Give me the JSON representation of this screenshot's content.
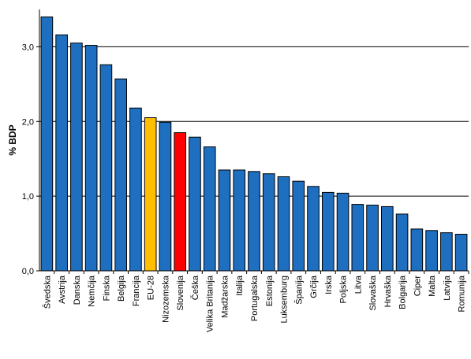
{
  "chart_data": {
    "type": "bar",
    "title": "",
    "xlabel": "",
    "ylabel": "% BDP",
    "ylim": [
      0,
      3.5
    ],
    "yticks": [
      "0,0",
      "1,0",
      "2,0",
      "3,0"
    ],
    "grid": true,
    "categories": [
      "Švedska",
      "Avstrija",
      "Danska",
      "Nemčija",
      "Finska",
      "Belgija",
      "Francija",
      "EU-28",
      "Nizozemska",
      "Slovenija",
      "Češka",
      "Velika Britanija",
      "Madžarska",
      "Italija",
      "Portugalska",
      "Estonija",
      "Luksemburg",
      "Španija",
      "Grčija",
      "Irska",
      "Poljska",
      "Litva",
      "Slovaška",
      "Hrvaška",
      "Bolgarija",
      "Ciper",
      "Malta",
      "Latvija",
      "Romunija"
    ],
    "values": [
      3.4,
      3.16,
      3.05,
      3.02,
      2.76,
      2.57,
      2.18,
      2.05,
      1.99,
      1.85,
      1.79,
      1.66,
      1.35,
      1.35,
      1.33,
      1.3,
      1.26,
      1.2,
      1.13,
      1.05,
      1.04,
      0.89,
      0.88,
      0.86,
      0.76,
      0.56,
      0.54,
      0.51,
      0.49
    ],
    "colors": {
      "default": "#1f6fc1",
      "EU-28": "#ffbf00",
      "Slovenija": "#ff0000",
      "grid": "#000000"
    }
  }
}
